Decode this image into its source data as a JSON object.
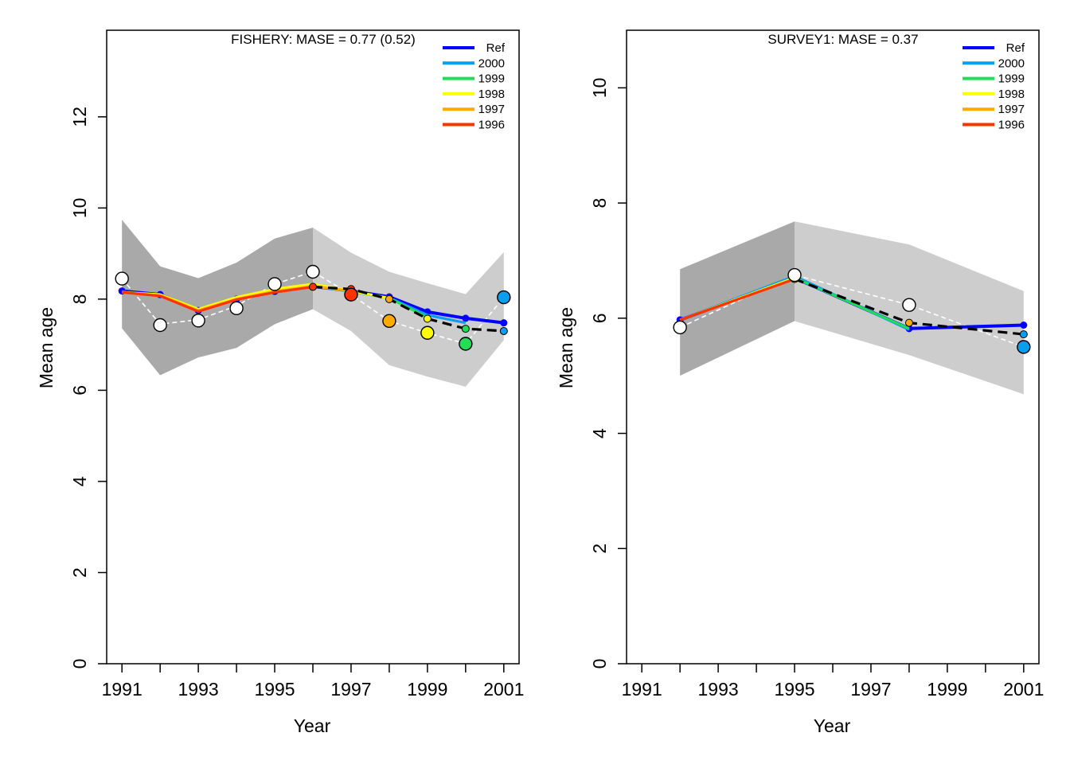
{
  "chart_data": [
    {
      "type": "line",
      "title": "FISHERY: MASE = 0.77 (0.52)",
      "xlabel": "Year",
      "ylabel": "Mean age",
      "xlim": [
        1990.6,
        2001.4
      ],
      "ylim": [
        0,
        13.9
      ],
      "xticks": [
        1991,
        1992,
        1993,
        1994,
        1995,
        1996,
        1997,
        1998,
        1999,
        2000,
        2001
      ],
      "xtick_labels": [
        "1991",
        "",
        "1993",
        "",
        "1995",
        "",
        "1997",
        "",
        "1999",
        "",
        "2001"
      ],
      "yticks": [
        0,
        2,
        4,
        6,
        8,
        10,
        12
      ],
      "ytick_labels": [
        "0",
        "2",
        "4",
        "6",
        "8",
        "10",
        "12"
      ],
      "bands": [
        {
          "fill": "#a9a9a9",
          "x": [
            1991,
            1992,
            1993,
            1994,
            1995,
            1996
          ],
          "upper": [
            9.74,
            8.72,
            8.46,
            8.8,
            9.33,
            9.57
          ],
          "lower": [
            7.36,
            6.33,
            6.72,
            6.93,
            7.45,
            7.78
          ]
        },
        {
          "fill": "#cdcdcd",
          "x": [
            1996,
            1997,
            1998,
            1999,
            2000,
            2001
          ],
          "upper": [
            9.57,
            9.02,
            8.6,
            8.35,
            8.11,
            9.03
          ],
          "lower": [
            7.78,
            7.3,
            6.55,
            6.3,
            6.08,
            7.1
          ]
        }
      ],
      "observed": {
        "x": [
          1991,
          1992,
          1993,
          1994,
          1995,
          1996,
          1997,
          1998,
          1999,
          2000,
          2001
        ],
        "y": [
          8.45,
          7.43,
          7.53,
          7.8,
          8.33,
          8.6,
          8.1,
          7.52,
          7.26,
          7.02,
          8.04
        ],
        "colors": [
          "#ffffff",
          "#ffffff",
          "#ffffff",
          "#ffffff",
          "#ffffff",
          "#ffffff",
          "#ff3300",
          "#ffaa00",
          "#ffff00",
          "#22dd55",
          "#0a9eee"
        ]
      },
      "series": [
        {
          "name": "Ref",
          "color": "#0000ff",
          "x": [
            1991,
            1992,
            1993,
            1994,
            1995,
            1996,
            1997,
            1998,
            1999,
            2000,
            2001
          ],
          "y": [
            8.18,
            8.1,
            7.75,
            8.0,
            8.17,
            8.28,
            8.18,
            8.05,
            7.72,
            7.58,
            7.48
          ]
        },
        {
          "name": "2000",
          "color": "#0a9eee",
          "x": [
            1991,
            1992,
            1993,
            1994,
            1995,
            1996,
            1997,
            1998,
            1999,
            2000
          ],
          "y": [
            8.16,
            8.08,
            7.74,
            8.0,
            8.17,
            8.28,
            8.17,
            8.03,
            7.65,
            7.48
          ]
        },
        {
          "name": "1999",
          "color": "#22dd55",
          "x": [
            1991,
            1992,
            1993,
            1994,
            1995,
            1996,
            1997,
            1998,
            1999
          ],
          "y": [
            8.15,
            8.08,
            7.75,
            8.01,
            8.19,
            8.3,
            8.17,
            8.02,
            7.6
          ]
        },
        {
          "name": "1998",
          "color": "#ffff00",
          "x": [
            1991,
            1992,
            1993,
            1994,
            1995,
            1996,
            1997,
            1998
          ],
          "y": [
            8.15,
            8.1,
            7.78,
            8.04,
            8.22,
            8.33,
            8.18,
            8.02
          ]
        },
        {
          "name": "1997",
          "color": "#ffaa00",
          "x": [
            1991,
            1992,
            1993,
            1994,
            1995,
            1996,
            1997
          ],
          "y": [
            8.15,
            8.08,
            7.75,
            8.0,
            8.17,
            8.28,
            8.18
          ]
        },
        {
          "name": "1996",
          "color": "#ff3300",
          "x": [
            1991,
            1992,
            1993,
            1994,
            1995,
            1996
          ],
          "y": [
            8.15,
            8.07,
            7.73,
            7.99,
            8.15,
            8.27
          ]
        }
      ],
      "forecast": {
        "x": [
          1996,
          1997,
          1998,
          1999,
          2000,
          2001
        ],
        "y": [
          8.27,
          8.22,
          8.0,
          7.57,
          7.35,
          7.3
        ],
        "colors": [
          "#ff3300",
          "#ff3300",
          "#ffaa00",
          "#ffff00",
          "#22dd55",
          "#0a9eee"
        ]
      },
      "observed_trend": {
        "x": [
          1991,
          1992,
          1993,
          1994,
          1995,
          1996,
          1997,
          1998,
          1999,
          2000,
          2001
        ],
        "y": [
          8.45,
          7.45,
          7.55,
          7.85,
          8.33,
          8.6,
          8.1,
          7.52,
          7.26,
          7.02,
          8.04
        ]
      },
      "legend": {
        "position": "top-right",
        "entries": [
          "Ref",
          "2000",
          "1999",
          "1998",
          "1997",
          "1996"
        ]
      }
    },
    {
      "type": "line",
      "title": "SURVEY1: MASE = 0.37",
      "xlabel": "Year",
      "ylabel": "Mean age",
      "xlim": [
        1990.6,
        2001.4
      ],
      "ylim": [
        0,
        11.0
      ],
      "xticks": [
        1991,
        1992,
        1993,
        1994,
        1995,
        1996,
        1997,
        1998,
        1999,
        2000,
        2001
      ],
      "xtick_labels": [
        "1991",
        "",
        "1993",
        "",
        "1995",
        "",
        "1997",
        "",
        "1999",
        "",
        "2001"
      ],
      "yticks": [
        0,
        2,
        4,
        6,
        8,
        10
      ],
      "ytick_labels": [
        "0",
        "2",
        "4",
        "6",
        "8",
        "10"
      ],
      "bands": [
        {
          "fill": "#a9a9a9",
          "x": [
            1992,
            1995
          ],
          "upper": [
            6.85,
            7.68
          ],
          "lower": [
            5.0,
            5.95
          ]
        },
        {
          "fill": "#cdcdcd",
          "x": [
            1995,
            1998,
            2001
          ],
          "upper": [
            7.68,
            7.28,
            6.47
          ],
          "lower": [
            5.95,
            5.36,
            4.68
          ]
        }
      ],
      "observed": {
        "x": [
          1992,
          1995,
          1998,
          2001
        ],
        "y": [
          5.84,
          6.75,
          6.23,
          5.5
        ],
        "colors": [
          "#ffffff",
          "#ffffff",
          "#ffffff",
          "#0a9eee"
        ]
      },
      "series": [
        {
          "name": "Ref",
          "color": "#0000ff",
          "x": [
            1992,
            1995,
            1998,
            2001
          ],
          "y": [
            5.97,
            6.7,
            5.82,
            5.88
          ]
        },
        {
          "name": "2000",
          "color": "#0a9eee",
          "x": [
            1992,
            1995,
            1998
          ],
          "y": [
            5.97,
            6.73,
            5.8
          ]
        },
        {
          "name": "1999",
          "color": "#22dd55",
          "x": [
            1992,
            1995,
            1998
          ],
          "y": [
            5.97,
            6.7,
            5.82
          ]
        },
        {
          "name": "1998",
          "color": "#ffff00",
          "x": [
            1992,
            1995
          ],
          "y": [
            5.97,
            6.7
          ]
        },
        {
          "name": "1997",
          "color": "#ffaa00",
          "x": [
            1992,
            1995
          ],
          "y": [
            5.97,
            6.68
          ]
        },
        {
          "name": "1996",
          "color": "#ff3300",
          "x": [
            1992,
            1995
          ],
          "y": [
            5.97,
            6.68
          ]
        }
      ],
      "forecast": {
        "x": [
          1995,
          1998,
          2001
        ],
        "y": [
          6.68,
          5.92,
          5.72
        ],
        "colors": [
          "#ffaa00",
          "#ffaa00",
          "#0a9eee"
        ]
      },
      "observed_trend": {
        "x": [
          1992,
          1995,
          1998,
          2001
        ],
        "y": [
          5.84,
          6.75,
          6.23,
          5.5
        ]
      },
      "legend": {
        "position": "top-right",
        "entries": [
          "Ref",
          "2000",
          "1999",
          "1998",
          "1997",
          "1996"
        ]
      }
    }
  ]
}
